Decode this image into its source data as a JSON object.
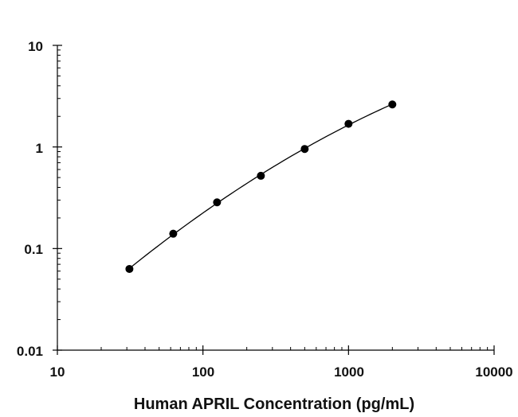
{
  "chart_data": {
    "type": "scatter",
    "title": "",
    "xlabel": "Human APRIL Concentration (pg/mL)",
    "ylabel": "",
    "xscale": "log",
    "yscale": "log",
    "xlim": [
      10,
      10000
    ],
    "ylim": [
      0.01,
      10
    ],
    "x_tick_labels": [
      "10",
      "100",
      "1000",
      "10000"
    ],
    "y_tick_labels": [
      "10",
      "1",
      "0.1",
      "0.01"
    ],
    "grid": false,
    "legend": "none",
    "series": [
      {
        "x": [
          31.25,
          62.5,
          125,
          250,
          500,
          1000,
          2000
        ],
        "y": [
          0.063,
          0.14,
          0.285,
          0.52,
          0.955,
          1.69,
          2.62
        ],
        "marker": "filled-circle",
        "fit_line": true,
        "color": "#000000"
      }
    ]
  }
}
